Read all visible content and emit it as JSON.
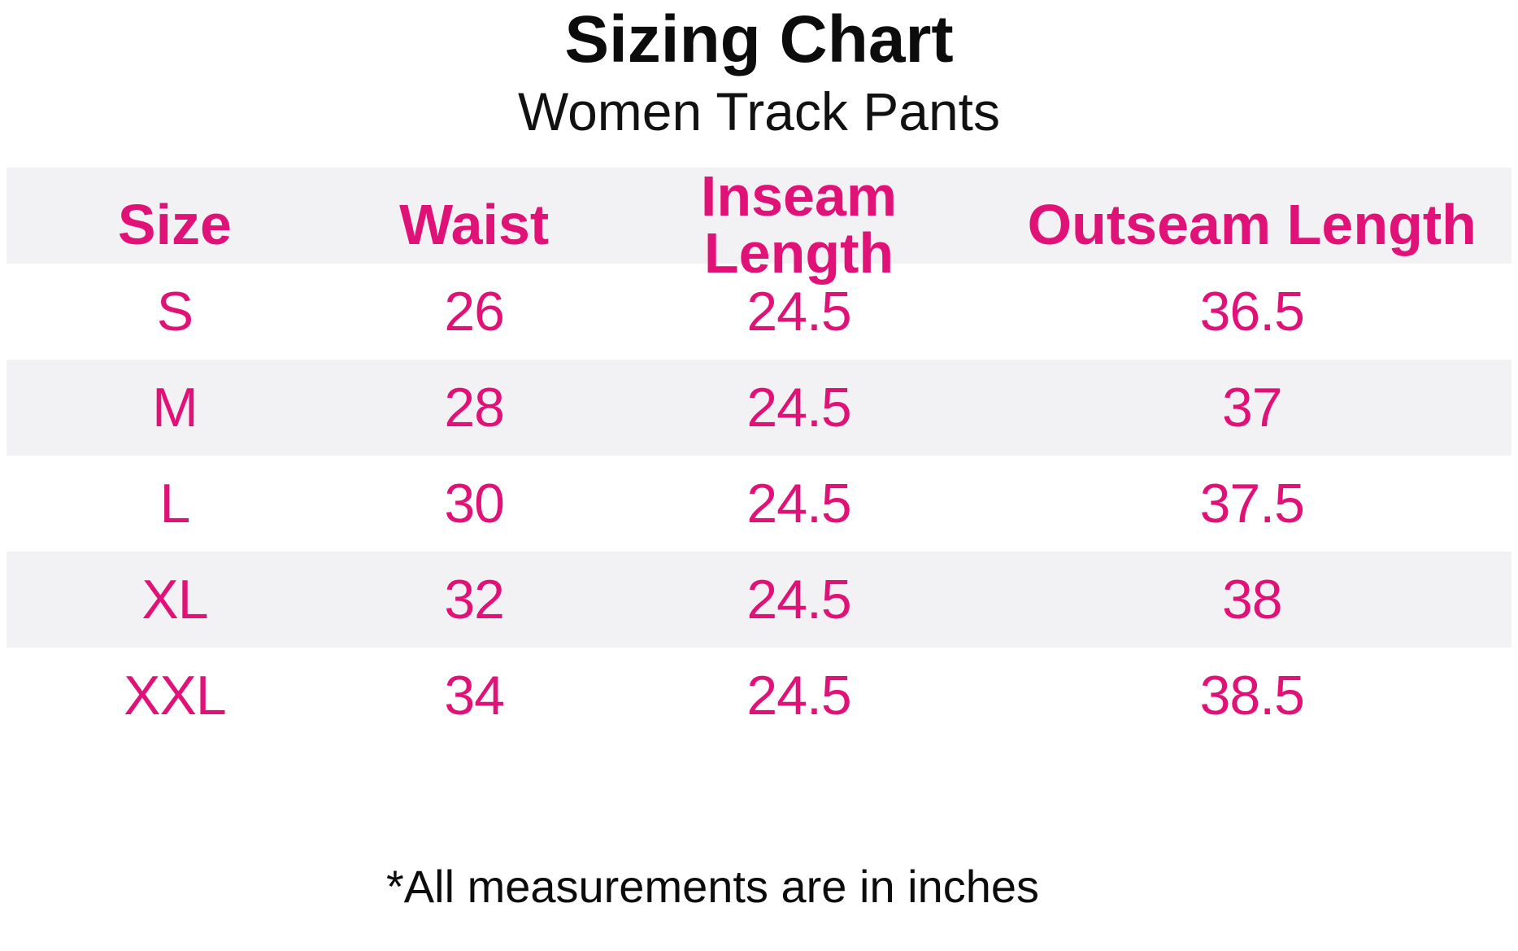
{
  "title": "Sizing Chart",
  "subtitle": "Women Track Pants",
  "footnote": "*All measurements are in inches",
  "colors": {
    "accent_pink": "#e11277",
    "row_alt_gray": "#f2f2f4",
    "text_black": "#0c0c0c"
  },
  "table": {
    "headers": [
      "Size",
      "Waist",
      "Inseam Length",
      "Outseam Length"
    ],
    "rows": [
      [
        "S",
        "26",
        "24.5",
        "36.5"
      ],
      [
        "M",
        "28",
        "24.5",
        "37"
      ],
      [
        "L",
        "30",
        "24.5",
        "37.5"
      ],
      [
        "XL",
        "32",
        "24.5",
        "38"
      ],
      [
        "XXL",
        "34",
        "24.5",
        "38.5"
      ]
    ]
  },
  "chart_data": {
    "type": "table",
    "title": "Sizing Chart",
    "subtitle": "Women Track Pants",
    "columns": [
      "Size",
      "Waist",
      "Inseam Length",
      "Outseam Length"
    ],
    "rows": [
      {
        "size": "S",
        "waist": 26,
        "inseam_length": 24.5,
        "outseam_length": 36.5
      },
      {
        "size": "M",
        "waist": 28,
        "inseam_length": 24.5,
        "outseam_length": 37
      },
      {
        "size": "L",
        "waist": 30,
        "inseam_length": 24.5,
        "outseam_length": 37.5
      },
      {
        "size": "XL",
        "waist": 32,
        "inseam_length": 24.5,
        "outseam_length": 38
      },
      {
        "size": "XXL",
        "waist": 34,
        "inseam_length": 24.5,
        "outseam_length": 38.5
      }
    ],
    "units": "inches",
    "footnote": "*All measurements are in inches",
    "layout": {
      "striped_rows": true,
      "header_background": "#f2f2f4",
      "text_color": "#e11277"
    }
  }
}
